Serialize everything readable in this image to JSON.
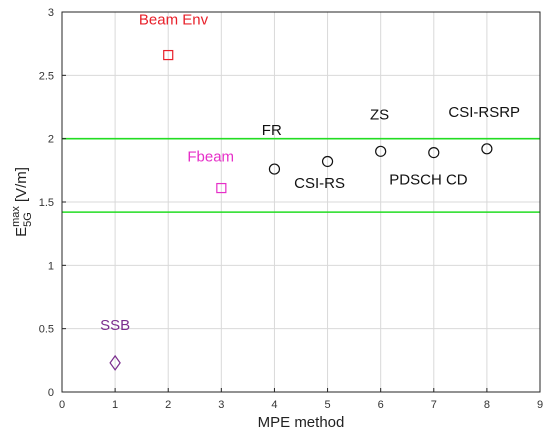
{
  "chart_data": {
    "type": "scatter",
    "title": "",
    "xlabel": "MPE method",
    "ylabel": {
      "base": "E",
      "superscript": "max",
      "subscript": "5G",
      "unit": "[V/m]"
    },
    "xlim": [
      0,
      9
    ],
    "ylim": [
      0,
      3
    ],
    "xticks": [
      "0",
      "1",
      "2",
      "3",
      "4",
      "5",
      "6",
      "7",
      "8",
      "9"
    ],
    "yticks": [
      "0",
      "0.5",
      "1",
      "1.5",
      "2",
      "2.5",
      "3"
    ],
    "grid": true,
    "reference_lines": [
      {
        "y": 2.0,
        "color": "#22dd22"
      },
      {
        "y": 1.42,
        "color": "#22dd22"
      }
    ],
    "points": [
      {
        "x": 1,
        "y": 0.23,
        "label": "SSB",
        "marker": "diamond",
        "color": "#7b2d8e",
        "label_x": 1,
        "label_y": 0.49
      },
      {
        "x": 2,
        "y": 2.66,
        "label": "Beam Env",
        "marker": "square",
        "color": "#e8202a",
        "label_x": 2.1,
        "label_y": 2.9
      },
      {
        "x": 3,
        "y": 1.61,
        "label": "Fbeam",
        "marker": "square",
        "color": "#e62fc8",
        "label_x": 2.8,
        "label_y": 1.82
      },
      {
        "x": 4,
        "y": 1.76,
        "label": "FR",
        "marker": "circle",
        "color": "#111111",
        "label_x": 3.95,
        "label_y": 2.03
      },
      {
        "x": 5,
        "y": 1.82,
        "label": "CSI-RS",
        "marker": "circle",
        "color": "#111111",
        "label_x": 4.85,
        "label_y": 1.61
      },
      {
        "x": 6,
        "y": 1.9,
        "label": "ZS",
        "marker": "circle",
        "color": "#111111",
        "label_x": 5.98,
        "label_y": 2.15
      },
      {
        "x": 7,
        "y": 1.89,
        "label": "PDSCH CD",
        "marker": "circle",
        "color": "#111111",
        "label_x": 6.9,
        "label_y": 1.64
      },
      {
        "x": 8,
        "y": 1.92,
        "label": "CSI-RSRP",
        "marker": "circle",
        "color": "#111111",
        "label_x": 7.95,
        "label_y": 2.17
      }
    ]
  }
}
